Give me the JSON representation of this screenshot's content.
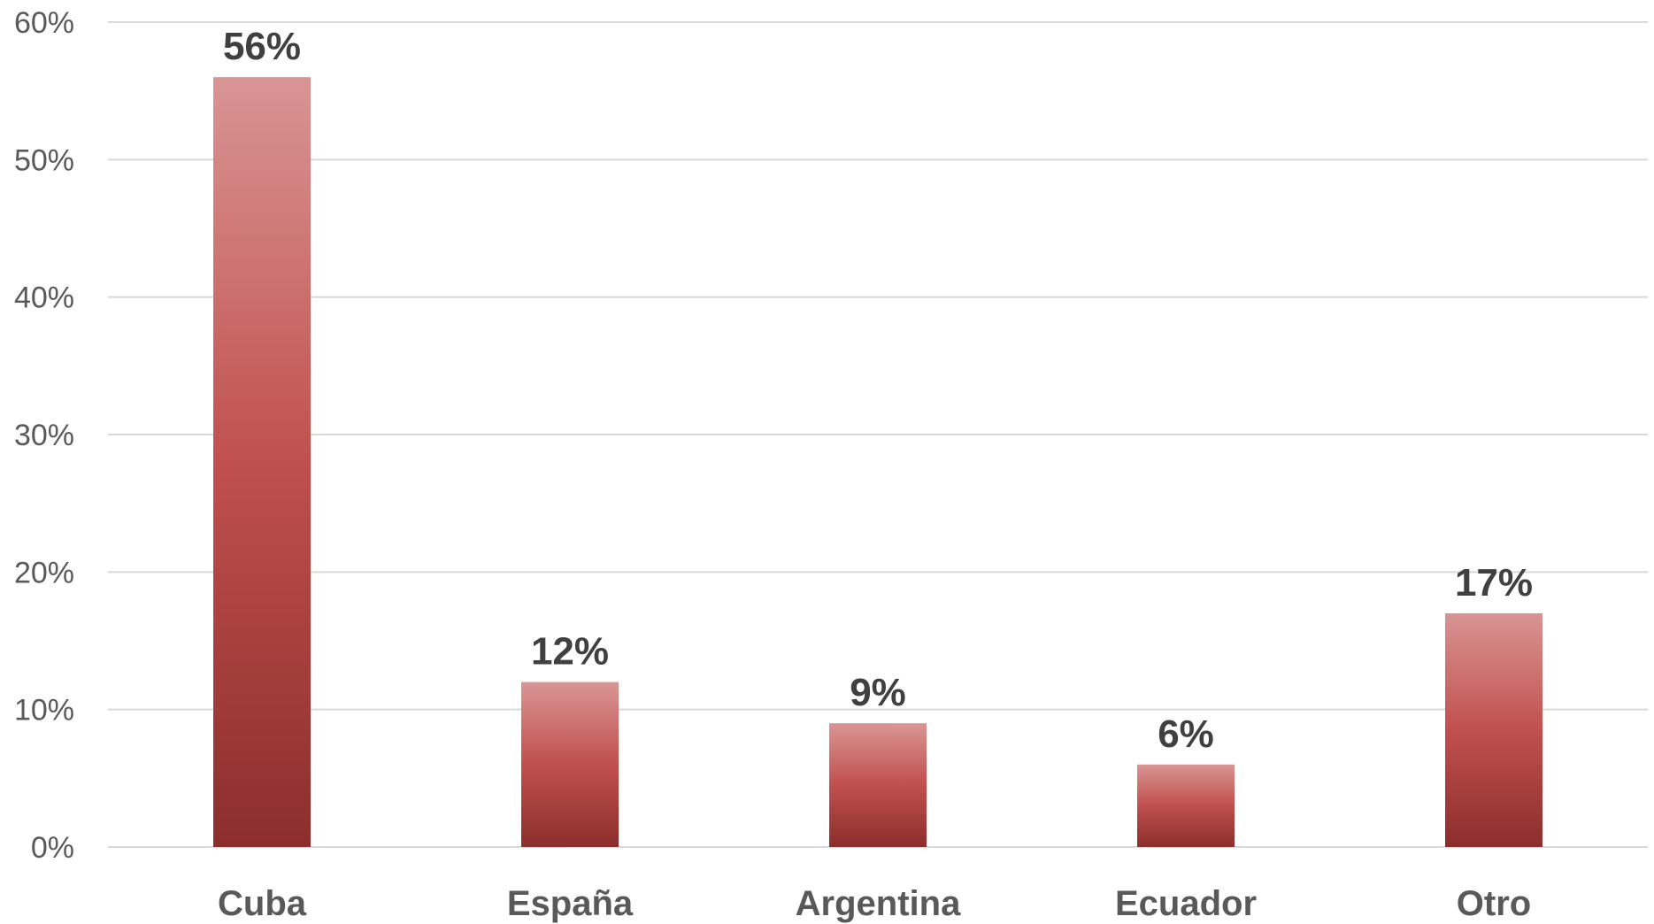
{
  "chart_data": {
    "type": "bar",
    "title": "",
    "xlabel": "",
    "ylabel": "",
    "categories": [
      "Cuba",
      "España",
      "Argentina",
      "Ecuador",
      "Otro"
    ],
    "values": [
      56,
      12,
      9,
      6,
      17
    ],
    "data_labels": [
      "56%",
      "12%",
      "9%",
      "6%",
      "17%"
    ],
    "ylim": [
      0,
      60
    ],
    "yticks": [
      0,
      10,
      20,
      30,
      40,
      50,
      60
    ],
    "ytick_labels": [
      "0%",
      "10%",
      "20%",
      "30%",
      "40%",
      "50%",
      "60%"
    ],
    "grid": true,
    "legend": "none",
    "colors": {
      "bar_top": "#d99594",
      "bar_mid": "#c0504d",
      "bar_bottom": "#8b2e2c",
      "grid": "#d9d9d9",
      "tick_text": "#595959",
      "label_text": "#404040"
    }
  }
}
